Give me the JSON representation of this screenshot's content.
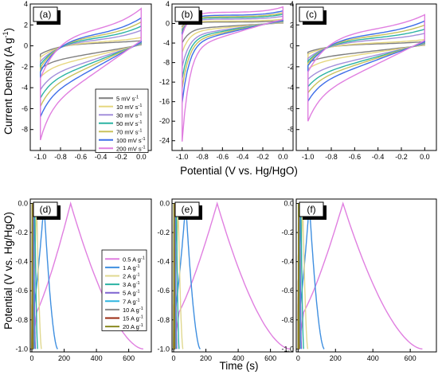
{
  "figure": {
    "cv_ylabel": "Current Density (A g",
    "cv_ylabel_sup": "-1",
    "cv_ylabel_end": ")",
    "cv_xlabel": "Potential (V vs. Hg/HgO)",
    "gcd_ylabel": "Potential (V vs. Hg/HgO)",
    "gcd_xlabel": "Time (s)"
  },
  "colors": {
    "v1": "#7f7f7f",
    "v2": "#e6d77f",
    "v3": "#a38fdb",
    "v4": "#2bb3a3",
    "v5": "#c9c25c",
    "v6": "#3e6ee8",
    "v7": "#e07fe0",
    "g05": "#e07fe0",
    "g1": "#3f8fe0",
    "g2": "#e0d890",
    "g3": "#2bb3a3",
    "g5": "#7d62d0",
    "g7": "#2fb5e0",
    "g10": "#8a8a8a",
    "g15": "#9a2a10",
    "g20": "#8a8a20"
  },
  "chart_data": [
    {
      "type": "line",
      "panel": "(a)",
      "xlim": [
        -1.1,
        0.1
      ],
      "ylim": [
        -10,
        4
      ],
      "xticks": [
        "-1.0",
        "-0.8",
        "-0.6",
        "-0.4",
        "-0.2",
        "0.0"
      ],
      "yticks": [
        "4",
        "2",
        "0",
        "-2",
        "-4",
        "-6",
        "-8"
      ],
      "series": [
        {
          "name": "5 mV s",
          "color": "v1",
          "peak": 0.5,
          "upper": 0.3,
          "lower": -1.6,
          "tail": -2.2
        },
        {
          "name": "10 mV s",
          "color": "v2",
          "peak": 0.8,
          "upper": 0.4,
          "lower": -2.2,
          "tail": -3.0
        },
        {
          "name": "30 mV s",
          "color": "v3",
          "peak": 1.5,
          "upper": 0.6,
          "lower": -3.0,
          "tail": -4.2
        },
        {
          "name": "50 mV s",
          "color": "v4",
          "peak": 1.9,
          "upper": 0.8,
          "lower": -3.6,
          "tail": -5.0
        },
        {
          "name": "70 mV s",
          "color": "v5",
          "peak": 2.3,
          "upper": 1.0,
          "lower": -4.2,
          "tail": -5.8
        },
        {
          "name": "100 mV s",
          "color": "v6",
          "peak": 2.7,
          "upper": 1.2,
          "lower": -5.0,
          "tail": -6.8
        },
        {
          "name": "200 mV s",
          "color": "v7",
          "peak": 3.6,
          "upper": 1.7,
          "lower": -6.2,
          "tail": -9.0
        }
      ]
    },
    {
      "type": "line",
      "panel": "(b)",
      "xlim": [
        -1.1,
        0.1
      ],
      "ylim": [
        -26,
        4
      ],
      "xticks": [
        "-1.0",
        "-0.8",
        "-0.6",
        "-0.4",
        "-0.2",
        "0.0"
      ],
      "yticks": [
        "4",
        "0",
        "-4",
        "-8",
        "-12",
        "-16",
        "-20",
        "-24"
      ],
      "series": [
        {
          "name": "5 mV s",
          "color": "v1",
          "peak": 0.6,
          "upper": 0.3,
          "lower": -2.0,
          "tail": -4.0
        },
        {
          "name": "10 mV s",
          "color": "v2",
          "peak": 0.9,
          "upper": 0.5,
          "lower": -3.0,
          "tail": -6.0
        },
        {
          "name": "30 mV s",
          "color": "v3",
          "peak": 1.5,
          "upper": 0.9,
          "lower": -4.5,
          "tail": -9.0
        },
        {
          "name": "50 mV s",
          "color": "v4",
          "peak": 1.9,
          "upper": 1.2,
          "lower": -5.5,
          "tail": -11.5
        },
        {
          "name": "70 mV s",
          "color": "v5",
          "peak": 2.2,
          "upper": 1.4,
          "lower": -6.5,
          "tail": -13.5
        },
        {
          "name": "100 mV s",
          "color": "v6",
          "peak": 2.6,
          "upper": 1.7,
          "lower": -7.5,
          "tail": -16.5
        },
        {
          "name": "200 mV s",
          "color": "v7",
          "peak": 3.4,
          "upper": 2.3,
          "lower": -9.5,
          "tail": -24.5
        }
      ]
    },
    {
      "type": "line",
      "panel": "(c)",
      "xlim": [
        -1.1,
        0.1
      ],
      "ylim": [
        -10,
        4
      ],
      "xticks": [
        "-1.0",
        "-0.8",
        "-0.6",
        "-0.4",
        "-0.2",
        "0.0"
      ],
      "yticks": [
        "4",
        "2",
        "0",
        "-2",
        "-4",
        "-6",
        "-8"
      ],
      "series": [
        {
          "name": "5 mV s",
          "color": "v1",
          "peak": 0.4,
          "upper": 0.2,
          "lower": -1.2,
          "tail": -1.6
        },
        {
          "name": "10 mV s",
          "color": "v2",
          "peak": 0.6,
          "upper": 0.3,
          "lower": -1.6,
          "tail": -2.2
        },
        {
          "name": "30 mV s",
          "color": "v3",
          "peak": 1.2,
          "upper": 0.6,
          "lower": -2.4,
          "tail": -3.2
        },
        {
          "name": "50 mV s",
          "color": "v4",
          "peak": 1.6,
          "upper": 0.8,
          "lower": -2.9,
          "tail": -3.9
        },
        {
          "name": "70 mV s",
          "color": "v5",
          "peak": 2.0,
          "upper": 1.0,
          "lower": -3.3,
          "tail": -4.5
        },
        {
          "name": "100 mV s",
          "color": "v6",
          "peak": 2.4,
          "upper": 1.2,
          "lower": -3.8,
          "tail": -5.3
        },
        {
          "name": "200 mV s",
          "color": "v7",
          "peak": 3.0,
          "upper": 1.7,
          "lower": -5.0,
          "tail": -7.2
        }
      ]
    },
    {
      "type": "line",
      "panel": "(d)",
      "xlim": [
        -10,
        740
      ],
      "ylim": [
        -1.02,
        0.03
      ],
      "xticks": [
        "0",
        "200",
        "400",
        "600"
      ],
      "yticks": [
        "0.0",
        "-0.2",
        "-0.4",
        "-0.6",
        "-0.8",
        "-1.0"
      ],
      "series": [
        {
          "name": "0.5 A g",
          "color": "g05",
          "tc": 240,
          "td": 690
        },
        {
          "name": "1 A g",
          "color": "g1",
          "tc": 75,
          "td": 160
        },
        {
          "name": "2 A g",
          "color": "g2",
          "tc": 30,
          "td": 60
        },
        {
          "name": "3 A g",
          "color": "g3",
          "tc": 18,
          "td": 36
        },
        {
          "name": "5 A g",
          "color": "g5",
          "tc": 11,
          "td": 22
        },
        {
          "name": "7 A g",
          "color": "g7",
          "tc": 7,
          "td": 15
        },
        {
          "name": "10 A g",
          "color": "g10",
          "tc": 5,
          "td": 10
        },
        {
          "name": "15 A g",
          "color": "g15",
          "tc": 3,
          "td": 6
        },
        {
          "name": "20 A g",
          "color": "g20",
          "tc": 2,
          "td": 4
        }
      ]
    },
    {
      "type": "line",
      "panel": "(e)",
      "xlim": [
        -10,
        740
      ],
      "ylim": [
        -1.02,
        0.03
      ],
      "xticks": [
        "0",
        "200",
        "400",
        "600"
      ],
      "yticks": [
        "0.0",
        "-0.2",
        "-0.4",
        "-0.6",
        "-0.8",
        "-1.0"
      ],
      "series": [
        {
          "name": "0.5 A g",
          "color": "g05",
          "tc": 270,
          "td": 720
        },
        {
          "name": "1 A g",
          "color": "g1",
          "tc": 75,
          "td": 165
        },
        {
          "name": "2 A g",
          "color": "g2",
          "tc": 28,
          "td": 58
        },
        {
          "name": "3 A g",
          "color": "g3",
          "tc": 17,
          "td": 34
        },
        {
          "name": "5 A g",
          "color": "g5",
          "tc": 10,
          "td": 20
        },
        {
          "name": "7 A g",
          "color": "g7",
          "tc": 7,
          "td": 14
        },
        {
          "name": "10 A g",
          "color": "g10",
          "tc": 5,
          "td": 10
        },
        {
          "name": "15 A g",
          "color": "g15",
          "tc": 3,
          "td": 6
        },
        {
          "name": "20 A g",
          "color": "g20",
          "tc": 2,
          "td": 4
        }
      ]
    },
    {
      "type": "line",
      "panel": "(f)",
      "xlim": [
        -10,
        740
      ],
      "ylim": [
        -1.02,
        0.03
      ],
      "xticks": [
        "0",
        "200",
        "400",
        "600"
      ],
      "yticks": [
        "0.0",
        "-0.2",
        "-0.4",
        "-0.6",
        "-0.8",
        "-1.0"
      ],
      "series": [
        {
          "name": "0.5 A g",
          "color": "g05",
          "tc": 240,
          "td": 665
        },
        {
          "name": "1 A g",
          "color": "g1",
          "tc": 60,
          "td": 140
        },
        {
          "name": "2 A g",
          "color": "g2",
          "tc": 25,
          "td": 52
        },
        {
          "name": "3 A g",
          "color": "g3",
          "tc": 15,
          "td": 30
        },
        {
          "name": "5 A g",
          "color": "g5",
          "tc": 9,
          "td": 18
        },
        {
          "name": "7 A g",
          "color": "g7",
          "tc": 6,
          "td": 12
        },
        {
          "name": "10 A g",
          "color": "g10",
          "tc": 4,
          "td": 8
        },
        {
          "name": "15 A g",
          "color": "g15",
          "tc": 3,
          "td": 5
        },
        {
          "name": "20 A g",
          "color": "g20",
          "tc": 2,
          "td": 3
        }
      ]
    }
  ],
  "legends": {
    "cv": [
      "5 mV s",
      "10 mV s",
      "30 mV s",
      "50 mV s",
      "70 mV s",
      "100 mV s",
      "200 mV s"
    ],
    "cv_sup": "-1",
    "gcd": [
      "0.5 A g",
      "1 A g",
      "2 A g",
      "3 A g",
      "5 A g",
      "7 A g",
      "10 A g",
      "15 A g",
      "20 A g"
    ],
    "gcd_sup": "-1"
  }
}
